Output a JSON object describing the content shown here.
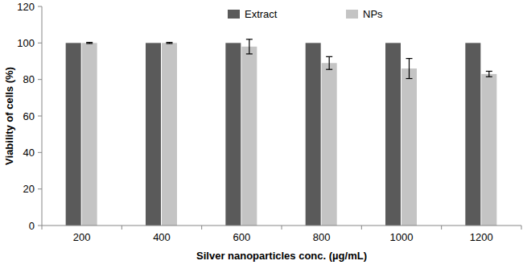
{
  "chart_data": {
    "type": "bar",
    "x_label": "Silver nanoparticles conc. (µg/mL)",
    "y_label": "Viability of cells (%)",
    "categories": [
      "200",
      "400",
      "600",
      "800",
      "1000",
      "1200"
    ],
    "series": [
      {
        "name": "Extract",
        "color": "#5a5a5a",
        "values": [
          100,
          100,
          100,
          100,
          100,
          100
        ]
      },
      {
        "name": "NPs",
        "color": "#c4c4c4",
        "values": [
          100,
          100,
          98,
          89,
          86,
          83
        ],
        "errors": [
          0.3,
          0.3,
          4,
          3.5,
          5.5,
          1.5
        ]
      }
    ],
    "ylim": [
      0,
      120
    ],
    "yticks": [
      0,
      20,
      40,
      60,
      80,
      100,
      120
    ],
    "grid": false,
    "legend": "top"
  }
}
